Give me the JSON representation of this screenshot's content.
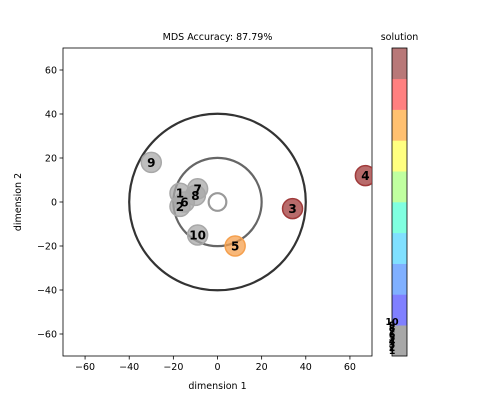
{
  "chart_data": {
    "type": "scatter",
    "title": "MDS Accuracy: 87.79%",
    "xlabel": "dimension 1",
    "ylabel": "dimension 2",
    "xlim": [
      -70,
      70
    ],
    "ylim": [
      -70,
      70
    ],
    "xticks": [
      -60,
      -40,
      -20,
      0,
      20,
      40,
      60
    ],
    "yticks": [
      -60,
      -40,
      -20,
      0,
      20,
      40,
      60
    ],
    "grid": false,
    "circles": [
      {
        "radius": 40,
        "color": "#333333"
      },
      {
        "radius": 20,
        "color": "#666666"
      },
      {
        "radius": 4,
        "color": "#999999"
      }
    ],
    "points": [
      {
        "label": "1",
        "x": -17,
        "y": 4,
        "color": "#a8a8a8"
      },
      {
        "label": "2",
        "x": -17,
        "y": -2,
        "color": "#a8a8a8"
      },
      {
        "label": "3",
        "x": 34,
        "y": -3,
        "color": "#a03a3a"
      },
      {
        "label": "4",
        "x": 67,
        "y": 12,
        "color": "#a03a3a"
      },
      {
        "label": "5",
        "x": 8,
        "y": -20,
        "color": "#f5a04e"
      },
      {
        "label": "6",
        "x": -15,
        "y": 0,
        "color": "#a8a8a8"
      },
      {
        "label": "7",
        "x": -9,
        "y": 6,
        "color": "#a8a8a8"
      },
      {
        "label": "8",
        "x": -10,
        "y": 3,
        "color": "#a8a8a8"
      },
      {
        "label": "9",
        "x": -30,
        "y": 18,
        "color": "#a8a8a8"
      },
      {
        "label": "10",
        "x": -9,
        "y": -15,
        "color": "#a8a8a8"
      }
    ],
    "colorbar": {
      "title": "solution",
      "tick_labels": [
        "1",
        "2",
        "3",
        "4",
        "5",
        "6",
        "7",
        "8",
        "9",
        "10"
      ],
      "segment_colors": [
        "#a8a8a8",
        "#8080ff",
        "#80b0ff",
        "#80e0ff",
        "#80ffe0",
        "#c0ffa0",
        "#ffff80",
        "#ffc070",
        "#ff8080",
        "#b87878"
      ]
    }
  }
}
